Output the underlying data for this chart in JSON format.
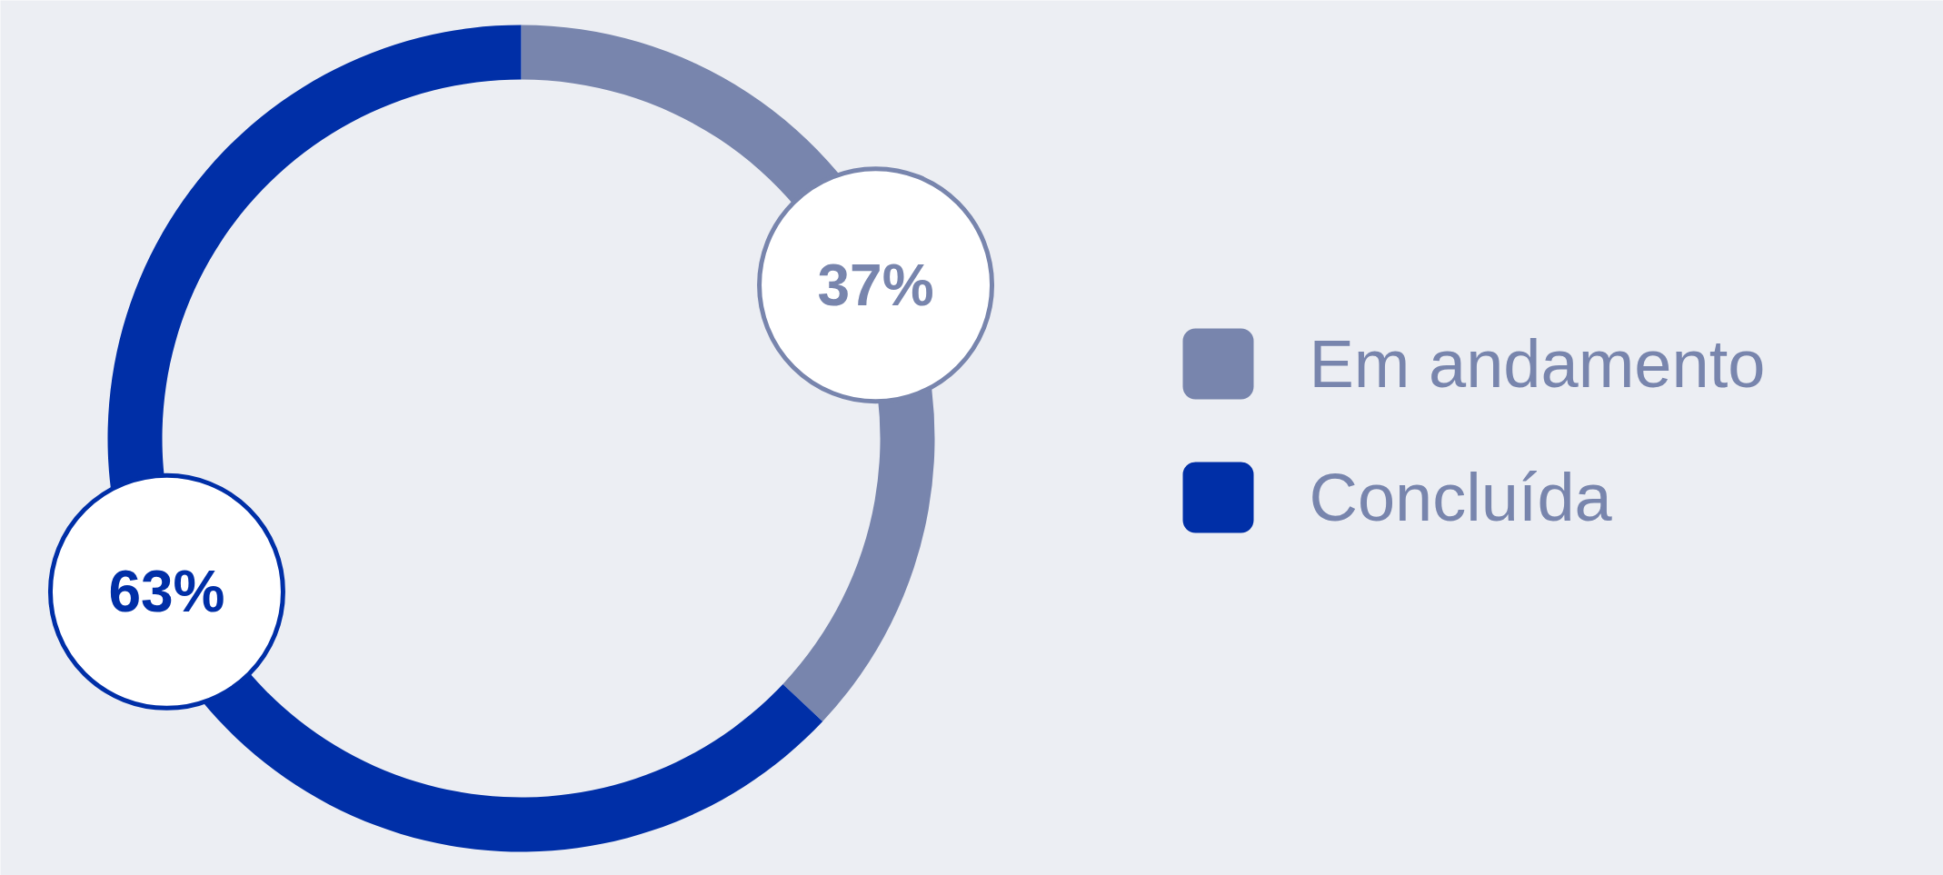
{
  "chart_data": {
    "type": "donut",
    "categories": [
      "Em andamento",
      "Concluída"
    ],
    "values": [
      37,
      63
    ],
    "colors": [
      "#7885ad",
      "#002fa7"
    ],
    "value_labels": [
      "37%",
      "63%"
    ],
    "legend": "right"
  }
}
